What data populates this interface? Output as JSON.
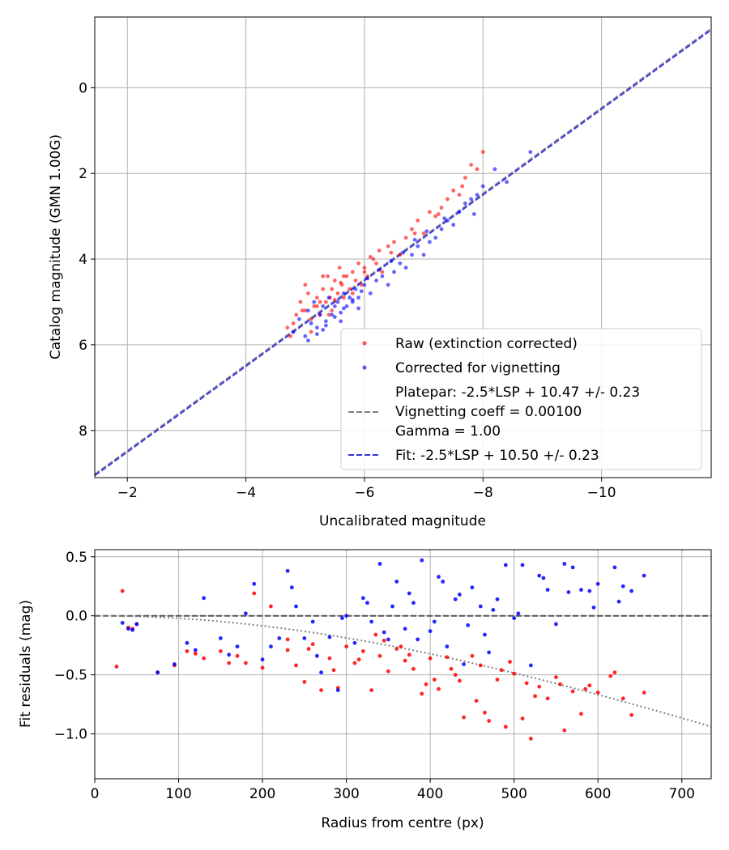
{
  "chart_data": [
    {
      "type": "scatter",
      "xlabel": "Uncalibrated magnitude",
      "ylabel": "Catalog magnitude (GMN 1.00G)",
      "xlim": [
        -1.45,
        -11.85
      ],
      "ylim": [
        -1.65,
        9.1
      ],
      "x_inverted": true,
      "y_inverted": true,
      "grid": true,
      "xticks": [
        -2,
        -4,
        -6,
        -8,
        -10
      ],
      "xtick_labels": [
        "−2",
        "−4",
        "−6",
        "−8",
        "−10"
      ],
      "yticks": [
        0,
        2,
        4,
        6,
        8
      ],
      "ytick_labels": [
        "0",
        "2",
        "4",
        "6",
        "8"
      ],
      "legend": {
        "location": "lower-right",
        "entries": [
          {
            "label": "Raw (extinction corrected)",
            "color": "#ff0000",
            "style": "dot"
          },
          {
            "label": "Corrected for vignetting",
            "color": "#0000ff",
            "style": "dot"
          },
          {
            "label_lines": [
              "Platepar: -2.5*LSP + 10.47 +/- 0.23",
              "Vignetting coeff = 0.00100",
              "Gamma = 1.00"
            ],
            "color": "#808080",
            "style": "dashed"
          },
          {
            "label": "Fit: -2.5*LSP + 10.50 +/- 0.23",
            "color": "#3333dd",
            "style": "dashed"
          }
        ]
      },
      "lines": [
        {
          "name": "Platepar",
          "slope": 1,
          "intercept": 10.47,
          "color": "#808080"
        },
        {
          "name": "Fit",
          "slope": 1,
          "intercept": 10.5,
          "color": "#3333dd"
        }
      ],
      "series": [
        {
          "name": "Raw (extinction corrected)",
          "color": "#ff0000",
          "x": [
            -4.7,
            -4.85,
            -4.92,
            -5.0,
            -5.05,
            -5.1,
            -5.15,
            -5.2,
            -5.25,
            -5.3,
            -5.35,
            -5.38,
            -5.42,
            -5.45,
            -5.5,
            -5.55,
            -5.58,
            -5.62,
            -5.65,
            -5.7,
            -5.75,
            -5.8,
            -5.85,
            -5.9,
            -5.95,
            -6.0,
            -6.05,
            -6.1,
            -6.2,
            -6.25,
            -6.3,
            -6.4,
            -6.5,
            -6.6,
            -6.7,
            -6.8,
            -6.9,
            -7.0,
            -7.1,
            -7.2,
            -7.3,
            -7.4,
            -7.5,
            -7.6,
            -7.7,
            -7.8,
            -7.9,
            -8.0,
            -4.8,
            -5.0,
            -5.1,
            -5.2,
            -5.3,
            -5.4,
            -5.5,
            -5.6,
            -5.8,
            -6.0,
            -4.75,
            -4.95,
            -5.25,
            -5.45,
            -5.65,
            -6.15,
            -6.45,
            -6.85,
            -7.25,
            -7.65
          ],
          "y": [
            5.6,
            5.3,
            5.0,
            5.2,
            4.8,
            5.4,
            5.1,
            4.9,
            5.3,
            4.7,
            5.0,
            4.4,
            4.9,
            5.2,
            4.5,
            4.8,
            4.2,
            4.6,
            4.9,
            4.4,
            4.7,
            4.3,
            4.5,
            4.1,
            4.6,
            4.2,
            4.4,
            3.95,
            4.1,
            3.8,
            4.3,
            3.7,
            3.6,
            3.9,
            3.5,
            3.3,
            3.1,
            3.4,
            2.9,
            3.0,
            2.8,
            2.6,
            2.4,
            2.5,
            2.1,
            1.8,
            1.9,
            1.5,
            5.5,
            4.6,
            5.7,
            5.1,
            4.4,
            5.3,
            4.95,
            4.55,
            4.8,
            4.3,
            5.8,
            5.2,
            5.0,
            4.7,
            4.4,
            4.0,
            3.85,
            3.4,
            2.95,
            2.3
          ]
        },
        {
          "name": "Corrected for vignetting",
          "color": "#0000ff",
          "x": [
            -4.8,
            -4.9,
            -5.0,
            -5.05,
            -5.1,
            -5.15,
            -5.2,
            -5.25,
            -5.3,
            -5.35,
            -5.4,
            -5.45,
            -5.5,
            -5.55,
            -5.6,
            -5.65,
            -5.7,
            -5.75,
            -5.8,
            -5.85,
            -5.9,
            -6.0,
            -6.1,
            -6.2,
            -6.3,
            -6.4,
            -6.5,
            -6.6,
            -6.7,
            -6.8,
            -6.9,
            -7.0,
            -7.1,
            -7.2,
            -7.3,
            -7.4,
            -7.5,
            -7.6,
            -7.7,
            -7.8,
            -7.9,
            -8.0,
            -8.2,
            -8.4,
            -8.8,
            -5.05,
            -5.2,
            -5.35,
            -5.5,
            -5.65,
            -5.8,
            -5.95,
            -6.05,
            -6.25,
            -6.45,
            -6.65,
            -6.85,
            -7.05,
            -7.35,
            -7.85,
            -5.3,
            -5.6,
            -5.9
          ],
          "y": [
            5.7,
            5.4,
            5.8,
            5.2,
            5.5,
            5.0,
            5.6,
            5.3,
            5.1,
            5.45,
            4.9,
            5.3,
            5.1,
            5.0,
            5.25,
            4.8,
            5.1,
            4.9,
            5.0,
            4.7,
            4.9,
            4.6,
            4.8,
            4.5,
            4.4,
            4.6,
            4.3,
            4.1,
            4.2,
            3.9,
            3.7,
            3.9,
            3.6,
            3.5,
            3.3,
            3.1,
            3.2,
            2.9,
            2.7,
            2.6,
            2.5,
            2.3,
            1.9,
            2.2,
            1.5,
            5.9,
            5.75,
            5.55,
            5.35,
            5.15,
            4.95,
            4.75,
            4.45,
            4.25,
            4.05,
            3.85,
            3.55,
            3.35,
            3.05,
            2.95,
            5.65,
            5.45,
            5.15
          ]
        }
      ]
    },
    {
      "type": "scatter",
      "xlabel": "Radius from centre (px)",
      "ylabel": "Fit residuals (mag)",
      "xlim": [
        0,
        735
      ],
      "ylim": [
        -1.38,
        0.56
      ],
      "grid": true,
      "xticks": [
        0,
        100,
        200,
        300,
        400,
        500,
        600,
        700
      ],
      "xtick_labels": [
        "0",
        "100",
        "200",
        "300",
        "400",
        "500",
        "600",
        "700"
      ],
      "yticks": [
        0.5,
        0.0,
        -0.5,
        -1.0
      ],
      "ytick_labels": [
        "0.5",
        "0.0",
        "−0.5",
        "−1.0"
      ],
      "reference_line": {
        "y": 0,
        "color": "#555555",
        "style": "dashed"
      },
      "vignetting_curve": {
        "coeff": 0.001,
        "color": "#808080",
        "style": "dotted"
      },
      "series": [
        {
          "name": "Raw",
          "color": "#ff0000",
          "x": [
            26,
            33,
            40,
            45,
            50,
            75,
            95,
            110,
            120,
            130,
            150,
            160,
            170,
            180,
            190,
            200,
            210,
            230,
            240,
            250,
            260,
            270,
            280,
            290,
            300,
            310,
            320,
            330,
            340,
            350,
            360,
            370,
            380,
            390,
            400,
            410,
            420,
            430,
            440,
            450,
            460,
            470,
            480,
            490,
            500,
            510,
            520,
            530,
            540,
            550,
            560,
            570,
            580,
            590,
            600,
            620,
            630,
            640,
            655,
            230,
            255,
            285,
            315,
            345,
            375,
            405,
            435,
            465,
            495,
            525,
            555,
            585,
            615,
            335,
            365,
            395,
            425,
            455,
            485,
            515
          ],
          "y": [
            -0.43,
            0.21,
            -0.1,
            -0.11,
            -0.07,
            -0.48,
            -0.42,
            -0.3,
            -0.32,
            -0.36,
            -0.3,
            -0.4,
            -0.34,
            -0.4,
            0.19,
            -0.44,
            0.08,
            -0.29,
            -0.42,
            -0.56,
            -0.24,
            -0.63,
            -0.36,
            -0.61,
            -0.26,
            -0.4,
            -0.3,
            -0.63,
            -0.34,
            -0.47,
            -0.28,
            -0.38,
            -0.45,
            -0.66,
            -0.36,
            -0.62,
            -0.35,
            -0.5,
            -0.86,
            -0.34,
            -0.42,
            -0.89,
            -0.54,
            -0.94,
            -0.49,
            -0.87,
            -1.04,
            -0.6,
            -0.7,
            -0.52,
            -0.97,
            -0.64,
            -0.83,
            -0.59,
            -0.65,
            -0.48,
            -0.7,
            -0.84,
            -0.65,
            -0.2,
            -0.28,
            -0.46,
            -0.37,
            -0.21,
            -0.33,
            -0.54,
            -0.55,
            -0.82,
            -0.39,
            -0.68,
            -0.58,
            -0.62,
            -0.51,
            -0.16,
            -0.26,
            -0.58,
            -0.45,
            -0.72,
            -0.46,
            -0.57
          ]
        },
        {
          "name": "Corrected",
          "color": "#0000ff",
          "x": [
            33,
            40,
            45,
            50,
            75,
            95,
            110,
            120,
            130,
            150,
            160,
            170,
            180,
            190,
            200,
            210,
            220,
            230,
            240,
            250,
            260,
            270,
            280,
            290,
            300,
            310,
            320,
            330,
            340,
            350,
            360,
            370,
            380,
            390,
            400,
            410,
            420,
            430,
            440,
            450,
            460,
            470,
            480,
            490,
            500,
            510,
            520,
            530,
            540,
            550,
            560,
            570,
            580,
            590,
            600,
            620,
            630,
            640,
            655,
            235,
            265,
            295,
            325,
            355,
            385,
            415,
            445,
            475,
            505,
            535,
            565,
            595,
            625,
            345,
            375,
            405,
            435,
            465
          ],
          "y": [
            -0.06,
            -0.11,
            -0.12,
            -0.07,
            -0.48,
            -0.41,
            -0.23,
            -0.29,
            0.15,
            -0.19,
            -0.33,
            -0.26,
            0.02,
            0.27,
            -0.37,
            -0.26,
            -0.19,
            0.38,
            0.08,
            -0.19,
            -0.05,
            -0.48,
            -0.18,
            -0.63,
            0.0,
            -0.23,
            0.15,
            -0.05,
            0.44,
            -0.2,
            0.29,
            -0.11,
            0.11,
            0.47,
            -0.13,
            0.33,
            -0.26,
            0.14,
            -0.41,
            0.24,
            0.08,
            -0.31,
            0.14,
            0.43,
            -0.02,
            0.43,
            -0.42,
            0.34,
            0.22,
            -0.07,
            0.44,
            0.41,
            0.22,
            0.21,
            0.27,
            0.41,
            0.25,
            0.21,
            0.34,
            0.24,
            -0.34,
            -0.02,
            0.11,
            0.08,
            -0.2,
            0.29,
            -0.08,
            0.05,
            0.02,
            0.32,
            0.2,
            0.07,
            0.12,
            -0.14,
            0.19,
            -0.05,
            0.18,
            -0.16
          ]
        }
      ]
    }
  ]
}
